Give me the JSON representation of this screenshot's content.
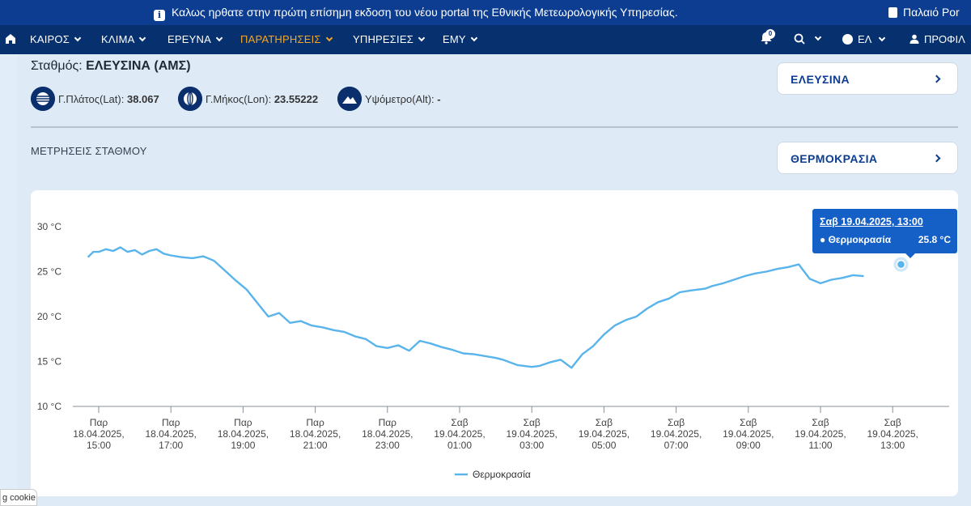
{
  "banner": {
    "message": "Καλως ηρθατε στην πρώτη επίσημη εκδοση του νέου portal της Εθνικής Μετεωρολογικής Υπηρεσίας.",
    "old_portal": "Παλαιό Por"
  },
  "nav": {
    "items": [
      "ΚΑΙΡΟΣ",
      "ΚΛΙΜΑ",
      "ΕΡΕΥΝΑ",
      "ΠΑΡΑΤΗΡΗΣΕΙΣ",
      "ΥΠΗΡΕΣΙΕΣ",
      "ΕΜΥ"
    ],
    "active": "ΠΑΡΑΤΗΡΗΣΕΙΣ",
    "notification_count": "0",
    "language": "ΕΛ",
    "profile": "ΠΡΟΦΙΛ"
  },
  "station": {
    "label": "Σταθμός: ",
    "name": "ΕΛΕΥΣΙΝΑ (ΑΜΣ)",
    "lat_label": "Γ.Πλάτος(Lat):",
    "lat_value": "38.067",
    "lon_label": "Γ.Μήκος(Lon):",
    "lon_value": "23.55222",
    "alt_label": "Υψόμετρο(Alt):",
    "alt_value": "-"
  },
  "selectors": {
    "station": "ΕΛΕΥΣΙΝΑ",
    "measurement": "ΘΕΡΜΟΚΡΑΣΙΑ"
  },
  "section_title": "ΜΕΤΡΗΣΕΙΣ ΣΤΑΘΜΟΥ",
  "tooltip": {
    "date": "Σαβ 19.04.2025, 13:00",
    "series": "● Θερμοκρασία",
    "value": "25.8 °C"
  },
  "cookie_label": "g cookie",
  "colors": {
    "banner": "#0c3d91",
    "nav": "#06306e",
    "active_nav": "#f6a623",
    "line": "#5ab4ec",
    "tooltip": "#1560c7"
  },
  "chart_data": {
    "type": "line",
    "ylim": [
      10,
      30
    ],
    "y_ticks": [
      "30 °C",
      "25 °C",
      "20 °C",
      "15 °C",
      "10 °C"
    ],
    "y_tick_values": [
      30,
      25,
      20,
      15,
      10
    ],
    "x_ticks": [
      [
        "Παρ",
        "18.04.2025,",
        "15:00"
      ],
      [
        "Παρ",
        "18.04.2025,",
        "17:00"
      ],
      [
        "Παρ",
        "18.04.2025,",
        "19:00"
      ],
      [
        "Παρ",
        "18.04.2025,",
        "21:00"
      ],
      [
        "Παρ",
        "18.04.2025,",
        "23:00"
      ],
      [
        "Σαβ",
        "19.04.2025,",
        "01:00"
      ],
      [
        "Σαβ",
        "19.04.2025,",
        "03:00"
      ],
      [
        "Σαβ",
        "19.04.2025,",
        "05:00"
      ],
      [
        "Σαβ",
        "19.04.2025,",
        "07:00"
      ],
      [
        "Σαβ",
        "19.04.2025,",
        "09:00"
      ],
      [
        "Σαβ",
        "19.04.2025,",
        "11:00"
      ],
      [
        "Σαβ",
        "19.04.2025,",
        "13:00"
      ]
    ],
    "legend": "Θερμοκρασία",
    "series": [
      {
        "name": "Θερμοκρασία",
        "x_hours": [
          -0.3,
          -0.15,
          0,
          0.2,
          0.4,
          0.6,
          0.8,
          1.0,
          1.2,
          1.4,
          1.6,
          1.8,
          2.0,
          2.3,
          2.6,
          2.9,
          3.2,
          3.5,
          3.8,
          4.1,
          4.4,
          4.7,
          5.0,
          5.3,
          5.6,
          5.9,
          6.2,
          6.5,
          6.8,
          7.1,
          7.4,
          7.7,
          8.0,
          8.3,
          8.6,
          8.9,
          9.2,
          9.5,
          9.8,
          10.1,
          10.4,
          10.7,
          11.0,
          11.2,
          11.4,
          11.6,
          11.8,
          12.0,
          12.2,
          12.5,
          12.8,
          13.1,
          13.4,
          13.7,
          14.0,
          14.3,
          14.6,
          14.9,
          15.2,
          15.5,
          15.8,
          16.1,
          16.4,
          16.6,
          16.8,
          17.0,
          17.3,
          17.6,
          17.9,
          18.2,
          18.5,
          18.8,
          19.1,
          19.4,
          19.7,
          20.0,
          20.3,
          20.6,
          20.9,
          21.2,
          21.5,
          21.8,
          22.0,
          22.2,
          22.4,
          22.6,
          22.8,
          23.0
        ],
        "values": [
          26.6,
          27.2,
          27.2,
          27.5,
          27.3,
          27.7,
          27.2,
          27.4,
          26.9,
          27.3,
          27.5,
          27.0,
          26.8,
          26.6,
          26.5,
          26.7,
          26.2,
          25.1,
          24.0,
          23.0,
          21.5,
          20.0,
          20.4,
          19.3,
          19.5,
          19.0,
          18.8,
          18.5,
          18.3,
          17.8,
          17.5,
          16.7,
          16.5,
          16.8,
          16.2,
          17.3,
          17.0,
          16.6,
          16.3,
          15.9,
          15.8,
          15.6,
          15.4,
          15.2,
          14.9,
          14.6,
          14.5,
          14.4,
          14.5,
          14.9,
          15.2,
          14.3,
          15.8,
          16.7,
          18.0,
          19.0,
          19.6,
          20.0,
          20.9,
          21.6,
          22.0,
          22.7,
          22.9,
          23.0,
          23.1,
          23.4,
          23.7,
          24.1,
          24.5,
          24.8,
          25.0,
          25.3,
          25.5,
          25.8,
          24.2,
          23.7,
          24.1,
          24.3,
          24.6,
          24.5,
          null,
          null,
          null,
          null,
          null,
          null,
          null,
          null
        ],
        "point": {
          "x_hours": 22.23,
          "value": 25.8
        }
      }
    ]
  }
}
